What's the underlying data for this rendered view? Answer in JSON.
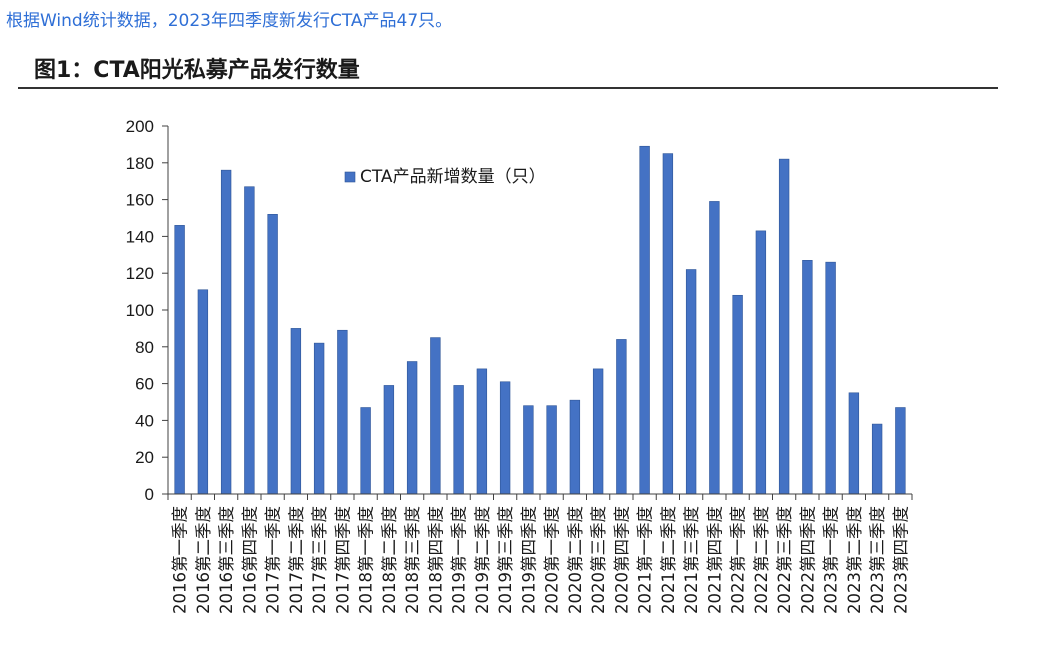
{
  "intro_text": "根据Wind统计数据，2023年四季度新发行CTA产品47只。",
  "figure_title": "图1：CTA阳光私募产品发行数量",
  "chart_data": {
    "type": "bar",
    "categories": [
      "2016第一季度",
      "2016第二季度",
      "2016第三季度",
      "2016第四季度",
      "2017第一季度",
      "2017第二季度",
      "2017第三季度",
      "2017第四季度",
      "2018第一季度",
      "2018第二季度",
      "2018第三季度",
      "2018第四季度",
      "2019第一季度",
      "2019第二季度",
      "2019第三季度",
      "2019第四季度",
      "2020第一季度",
      "2020第二季度",
      "2020第三季度",
      "2020第四季度",
      "2021第一季度",
      "2021第二季度",
      "2021第三季度",
      "2021第四季度",
      "2022第一季度",
      "2022第二季度",
      "2022第三季度",
      "2022第四季度",
      "2023第一季度",
      "2023第二季度",
      "2023第三季度",
      "2023第四季度"
    ],
    "series": [
      {
        "name": "CTA产品新增数量（只）",
        "values": [
          146,
          111,
          176,
          167,
          152,
          90,
          82,
          89,
          47,
          59,
          72,
          85,
          59,
          68,
          61,
          48,
          48,
          51,
          68,
          84,
          189,
          185,
          122,
          159,
          108,
          143,
          182,
          127,
          126,
          55,
          38,
          47
        ]
      }
    ],
    "ylim": [
      0,
      200
    ],
    "yticks": [
      0,
      20,
      40,
      60,
      80,
      100,
      120,
      140,
      160,
      180,
      200
    ],
    "grid": false,
    "legend_position": "top-center",
    "colors": {
      "bar": "#4472c4",
      "bar_edge": "#2e5597",
      "axis": "#404040"
    }
  }
}
